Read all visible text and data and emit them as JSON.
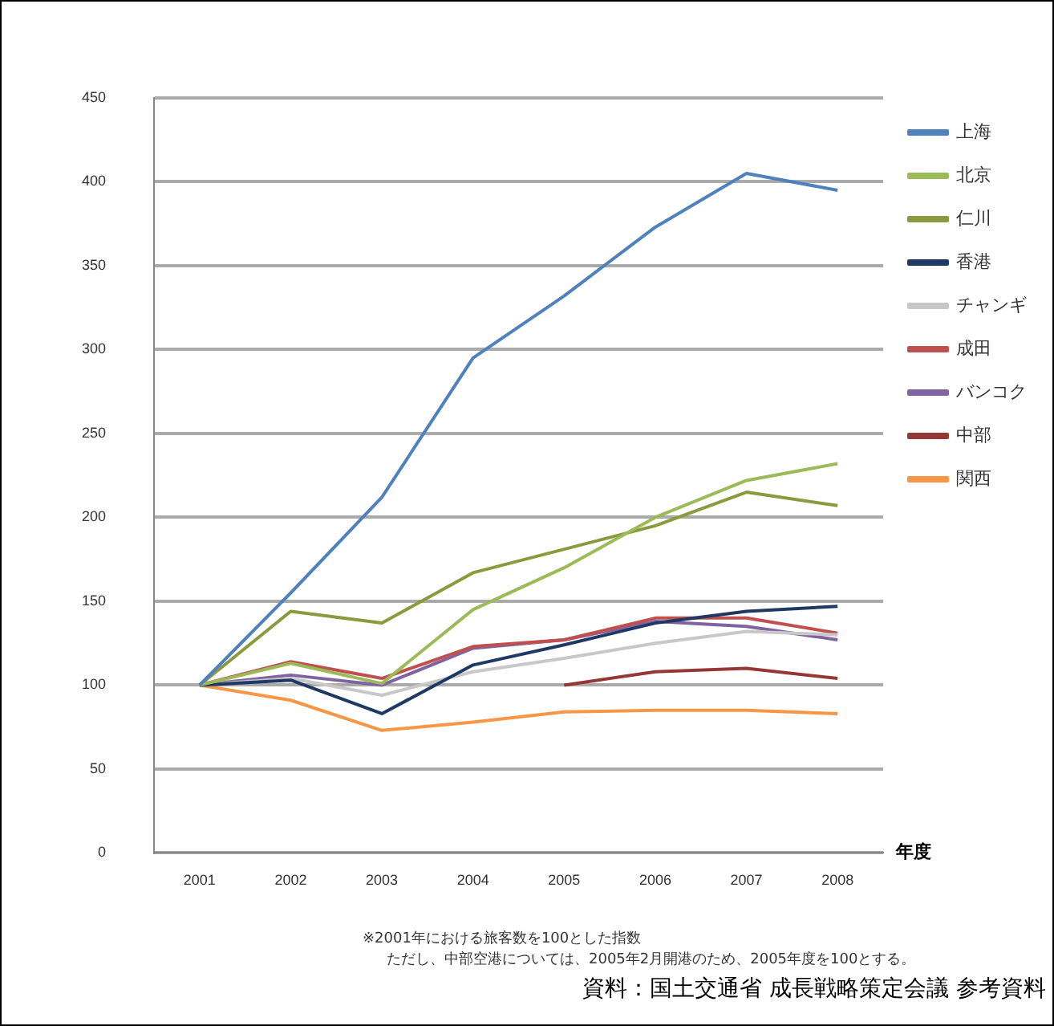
{
  "chart_data": {
    "type": "line",
    "xlabel": "年度",
    "categories": [
      "2001",
      "2002",
      "2003",
      "2004",
      "2005",
      "2006",
      "2007",
      "2008"
    ],
    "series": [
      {
        "name": "上海",
        "color": "#4f81bd",
        "values": [
          100,
          155,
          212,
          295,
          332,
          373,
          405,
          395
        ]
      },
      {
        "name": "北京",
        "color": "#9bbb59",
        "values": [
          100,
          113,
          101,
          145,
          170,
          200,
          222,
          232
        ]
      },
      {
        "name": "仁川",
        "color": "#8a9a3c",
        "values": [
          100,
          144,
          137,
          167,
          181,
          195,
          215,
          207
        ]
      },
      {
        "name": "香港",
        "color": "#1f3864",
        "values": [
          100,
          103,
          83,
          112,
          124,
          137,
          144,
          147
        ]
      },
      {
        "name": "チャンギ",
        "color": "#c8c8c8",
        "values": [
          100,
          104,
          94,
          108,
          116,
          125,
          132,
          130
        ]
      },
      {
        "name": "成田",
        "color": "#c0504d",
        "values": [
          100,
          114,
          104,
          123,
          127,
          140,
          140,
          131
        ]
      },
      {
        "name": "バンコク",
        "color": "#8064a2",
        "values": [
          100,
          106,
          100,
          122,
          127,
          138,
          135,
          127
        ]
      },
      {
        "name": "中部",
        "color": "#953735",
        "values": [
          null,
          null,
          null,
          null,
          100,
          108,
          110,
          104
        ]
      },
      {
        "name": "関西",
        "color": "#f79646",
        "values": [
          100,
          91,
          73,
          78,
          84,
          85,
          85,
          83
        ]
      }
    ],
    "ylim": [
      0,
      450
    ],
    "yticks": [
      0,
      50,
      100,
      150,
      200,
      250,
      300,
      350,
      400,
      450
    ],
    "grid": "y",
    "legend": "right",
    "marker": "none",
    "line_style": "solid",
    "annotations": [
      "※2001年における旅客数を100とした指数",
      "ただし、中部空港については、2005年2月開港のため、2005年度を100とする。",
      "資料：国土交通省 成長戦略策定会議 参考資料"
    ]
  }
}
